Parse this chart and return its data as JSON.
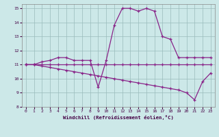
{
  "xlabel": "Windchill (Refroidissement éolien,°C)",
  "bg_color": "#cce8e8",
  "line_color": "#882288",
  "grid_color": "#99bbbb",
  "xlim": [
    -0.5,
    23.5
  ],
  "ylim": [
    8,
    15.3
  ],
  "xticks": [
    0,
    1,
    2,
    3,
    4,
    5,
    6,
    7,
    8,
    9,
    10,
    11,
    12,
    13,
    14,
    15,
    16,
    17,
    18,
    19,
    20,
    21,
    22,
    23
  ],
  "yticks": [
    8,
    9,
    10,
    11,
    12,
    13,
    14,
    15
  ],
  "line1_x": [
    0,
    1,
    2,
    3,
    4,
    5,
    6,
    7,
    8,
    9,
    10,
    11,
    12,
    13,
    14,
    15,
    16,
    17,
    18,
    19,
    20,
    21,
    22,
    23
  ],
  "line1_y": [
    11.0,
    11.0,
    11.2,
    11.3,
    11.5,
    11.5,
    11.3,
    11.3,
    11.3,
    9.4,
    11.3,
    13.8,
    15.0,
    15.0,
    14.8,
    15.0,
    14.8,
    13.0,
    12.8,
    11.5,
    11.5,
    11.5,
    11.5,
    11.5
  ],
  "line2_x": [
    0,
    1,
    2,
    3,
    4,
    5,
    6,
    7,
    8,
    9,
    10,
    11,
    12,
    13,
    14,
    15,
    16,
    17,
    18,
    19,
    20,
    21,
    22,
    23
  ],
  "line2_y": [
    11.0,
    11.0,
    11.0,
    11.0,
    11.0,
    11.0,
    11.0,
    11.0,
    11.0,
    11.0,
    11.0,
    11.0,
    11.0,
    11.0,
    11.0,
    11.0,
    11.0,
    11.0,
    11.0,
    11.0,
    11.0,
    11.0,
    11.0,
    11.0
  ],
  "line3_x": [
    0,
    1,
    2,
    3,
    4,
    5,
    6,
    7,
    8,
    9,
    10,
    11,
    12,
    13,
    14,
    15,
    16,
    17,
    18,
    19,
    20,
    21,
    22,
    23
  ],
  "line3_y": [
    11.0,
    11.0,
    10.9,
    10.8,
    10.7,
    10.6,
    10.5,
    10.4,
    10.3,
    10.2,
    10.1,
    10.0,
    9.9,
    9.8,
    9.7,
    9.6,
    9.5,
    9.4,
    9.3,
    9.2,
    9.0,
    8.5,
    9.8,
    10.4
  ]
}
